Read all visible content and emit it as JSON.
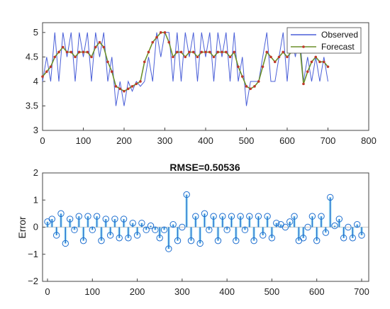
{
  "colors": {
    "observed": "#4a5fd8",
    "forecast": "#6b8f2a",
    "forecast_marker": "#c0392b",
    "error_stem": "#1f6fd0",
    "error_glow": "#7fd8ee"
  },
  "chart_data": [
    {
      "type": "line",
      "title": "",
      "xlabel": "",
      "ylabel": "",
      "xlim": [
        0,
        800
      ],
      "ylim": [
        3,
        5.2
      ],
      "xticks": [
        "0",
        "100",
        "200",
        "300",
        "400",
        "500",
        "600",
        "700",
        "800"
      ],
      "yticks": [
        "3",
        "3.5",
        "4",
        "4.5",
        "5"
      ],
      "legend_position": "top-right",
      "series": [
        {
          "name": "Observed",
          "x": [
            0,
            10,
            20,
            30,
            40,
            50,
            60,
            70,
            80,
            90,
            100,
            110,
            120,
            130,
            140,
            150,
            160,
            170,
            180,
            190,
            200,
            210,
            220,
            230,
            240,
            250,
            260,
            270,
            280,
            290,
            300,
            310,
            320,
            330,
            340,
            350,
            360,
            370,
            380,
            390,
            400,
            410,
            420,
            430,
            440,
            450,
            460,
            470,
            480,
            490,
            500,
            510,
            520,
            530,
            540,
            550,
            560,
            570,
            580,
            590,
            600,
            610,
            620,
            630,
            640,
            650,
            660,
            670,
            680,
            690,
            700
          ],
          "y": [
            4.0,
            4.5,
            4.0,
            5.0,
            4.0,
            5.0,
            4.5,
            5.0,
            4.0,
            5.0,
            4.5,
            5.0,
            4.0,
            5.0,
            4.5,
            5.0,
            4.0,
            4.5,
            3.5,
            4.0,
            3.5,
            4.0,
            3.8,
            4.0,
            3.9,
            4.0,
            4.5,
            4.0,
            5.0,
            4.5,
            5.0,
            5.0,
            4.0,
            5.0,
            4.0,
            5.0,
            4.5,
            5.0,
            4.0,
            5.0,
            4.5,
            5.0,
            4.0,
            5.0,
            4.5,
            5.0,
            4.0,
            5.0,
            4.0,
            4.5,
            3.5,
            4.0,
            4.0,
            4.0,
            4.5,
            5.0,
            4.0,
            4.0,
            4.5,
            5.0,
            4.0,
            5.0,
            4.5,
            5.0,
            4.0,
            4.5,
            4.0,
            4.5,
            4.0,
            4.5,
            4.0
          ]
        },
        {
          "name": "Forecast",
          "x": [
            0,
            10,
            20,
            30,
            40,
            50,
            60,
            70,
            80,
            90,
            100,
            110,
            120,
            130,
            140,
            150,
            160,
            170,
            180,
            190,
            200,
            210,
            220,
            230,
            240,
            250,
            260,
            270,
            280,
            290,
            300,
            310,
            320,
            330,
            340,
            350,
            360,
            370,
            380,
            390,
            400,
            410,
            420,
            430,
            440,
            450,
            460,
            470,
            480,
            490,
            500,
            510,
            520,
            530,
            540,
            550,
            560,
            570,
            580,
            590,
            600,
            610,
            620,
            630,
            640,
            650,
            660,
            670,
            680,
            690,
            700
          ],
          "y": [
            4.1,
            4.2,
            4.3,
            4.5,
            4.6,
            4.7,
            4.6,
            4.6,
            4.5,
            4.6,
            4.6,
            4.6,
            4.5,
            4.7,
            4.8,
            4.7,
            4.4,
            4.2,
            3.9,
            3.85,
            3.8,
            3.85,
            3.9,
            3.95,
            4.0,
            4.4,
            4.6,
            4.8,
            4.9,
            5.0,
            5.0,
            4.8,
            4.5,
            4.6,
            4.6,
            4.5,
            4.6,
            4.6,
            4.5,
            4.6,
            4.6,
            4.6,
            4.5,
            4.6,
            4.6,
            4.6,
            4.5,
            4.6,
            4.3,
            4.1,
            3.9,
            3.85,
            3.9,
            4.0,
            4.3,
            4.6,
            4.5,
            4.4,
            4.5,
            4.6,
            4.5,
            4.6,
            4.7,
            4.8,
            3.95,
            4.2,
            4.4,
            4.5,
            4.4,
            4.4,
            4.3
          ]
        }
      ]
    },
    {
      "type": "scatter",
      "subtype": "stem",
      "title": "RMSE=0.50536",
      "xlabel": "",
      "ylabel": "Error",
      "xlim": [
        0,
        700
      ],
      "ylim": [
        -2,
        2
      ],
      "xticks": [
        "0",
        "100",
        "200",
        "300",
        "400",
        "500",
        "600",
        "700"
      ],
      "yticks": [
        "−2",
        "−1",
        "0",
        "1",
        "2"
      ],
      "series": [
        {
          "name": "",
          "x": [
            0,
            10,
            20,
            30,
            40,
            50,
            60,
            70,
            80,
            90,
            100,
            110,
            120,
            130,
            140,
            150,
            160,
            170,
            180,
            190,
            200,
            210,
            220,
            230,
            240,
            250,
            260,
            270,
            280,
            290,
            300,
            310,
            320,
            330,
            340,
            350,
            360,
            370,
            380,
            390,
            400,
            410,
            420,
            430,
            440,
            450,
            460,
            470,
            480,
            490,
            500,
            510,
            520,
            530,
            540,
            550,
            560,
            570,
            580,
            590,
            600,
            610,
            620,
            630,
            640,
            650,
            660,
            670,
            680,
            690,
            700
          ],
          "y": [
            0.2,
            0.3,
            -0.3,
            0.5,
            -0.6,
            0.3,
            -0.1,
            0.4,
            -0.5,
            0.4,
            -0.1,
            0.4,
            -0.5,
            0.3,
            -0.3,
            0.3,
            -0.4,
            0.3,
            -0.4,
            0.15,
            -0.3,
            0.15,
            -0.1,
            0.05,
            -0.1,
            -0.4,
            -0.1,
            -0.8,
            0.1,
            -0.5,
            0.0,
            1.2,
            -0.5,
            0.4,
            -0.6,
            0.5,
            -0.1,
            0.4,
            -0.5,
            0.4,
            -0.1,
            0.4,
            -0.5,
            0.4,
            -0.1,
            0.4,
            -0.5,
            0.4,
            -0.3,
            0.4,
            -0.4,
            0.15,
            0.1,
            0.0,
            0.2,
            0.4,
            -0.5,
            -0.4,
            0.0,
            0.4,
            -0.5,
            0.4,
            -0.2,
            1.1,
            0.05,
            0.3,
            -0.4,
            0.0,
            -0.4,
            0.1,
            -0.3
          ]
        }
      ]
    }
  ],
  "legend": {
    "observed_label": "Observed",
    "forecast_label": "Forecast"
  }
}
